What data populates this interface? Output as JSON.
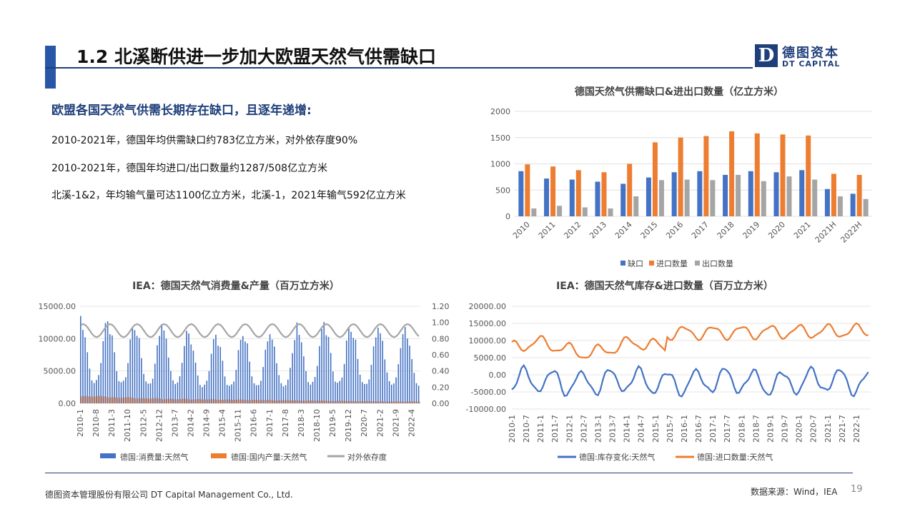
{
  "slide": {
    "title": "1.2 北溪断供进一步加大欧盟天然气供需缺口",
    "logo_mark": "D",
    "logo_cn": "德图资本",
    "logo_en": "DT CAPITAL",
    "heading": "欧盟各国天然气供需长期存在缺口，且逐年递增:",
    "bullets": [
      "2010-2021年，德国年均供需缺口约783亿立方米，对外依存度90%",
      "2010-2021年，德国年均进口/出口数量约1287/508亿立方米",
      "北溪-1&2，年均输气量可达1100亿立方米，北溪-1，2021年输气592亿立方米"
    ],
    "footer_left": "德图资本管理股份有限公司  DT Capital Management  Co., Ltd.",
    "footer_right": "数据来源：Wind，IEA",
    "page_number": "19"
  },
  "colors": {
    "blue": "#4472c4",
    "orange": "#ed7d31",
    "gray": "#a5a5a5",
    "navy": "#1f3f7a"
  },
  "chart_data": [
    {
      "type": "bar",
      "title": "德国天然气供需缺口&进出口数量（亿立方米）",
      "categories": [
        "2010",
        "2011",
        "2012",
        "2013",
        "2014",
        "2015",
        "2016",
        "2017",
        "2018",
        "2019",
        "2020",
        "2021",
        "2021H",
        "2022H"
      ],
      "ylim": [
        0,
        2000
      ],
      "yticks": [
        "0",
        "500",
        "1000",
        "1500",
        "2000"
      ],
      "legend_position": "bottom",
      "series": [
        {
          "name": "缺口",
          "color": "#4472c4",
          "values": [
            860,
            720,
            700,
            660,
            620,
            740,
            840,
            860,
            790,
            860,
            840,
            880,
            520,
            430
          ]
        },
        {
          "name": "进口数量",
          "color": "#ed7d31",
          "values": [
            990,
            950,
            880,
            840,
            1000,
            1410,
            1500,
            1530,
            1620,
            1580,
            1560,
            1540,
            810,
            790
          ]
        },
        {
          "name": "出口数量",
          "color": "#a5a5a5",
          "values": [
            150,
            200,
            170,
            150,
            380,
            690,
            700,
            690,
            790,
            670,
            760,
            700,
            380,
            330
          ]
        }
      ]
    },
    {
      "type": "bar",
      "title": "IEA：德国天然气消费量&产量（百万立方米）",
      "x_labels": [
        "2010-1",
        "2010-8",
        "2011-3",
        "2011-10",
        "2012-5",
        "2012-12",
        "2013-7",
        "2014-2",
        "2014-9",
        "2015-4",
        "2015-11",
        "2016-6",
        "2017-1",
        "2017-8",
        "2018-3",
        "2018-10",
        "2019-5",
        "2019-12",
        "2020-7",
        "2021-2",
        "2021-9",
        "2022-4"
      ],
      "ylim": [
        0,
        15000
      ],
      "yticks": [
        "0.00",
        "5000.00",
        "10000.00",
        "15000.00"
      ],
      "y2lim": [
        0,
        1.2
      ],
      "y2ticks": [
        "0.00",
        "0.20",
        "0.40",
        "0.60",
        "0.80",
        "1.00",
        "1.20"
      ],
      "legend_position": "bottom",
      "series": [
        {
          "name": "德国:消费量:天然气",
          "color": "#4472c4",
          "kind": "bar",
          "annual_peaks": [
            13500,
            13200,
            12300,
            12800,
            10800,
            11000,
            11300,
            11200,
            12500,
            13000,
            12000,
            12300,
            11800
          ]
        },
        {
          "name": "德国:国内产量:天然气",
          "color": "#ed7d31",
          "kind": "bar",
          "approx_values": [
            1150,
            950,
            800,
            700,
            650,
            600,
            550,
            500,
            450,
            400,
            350,
            300,
            300
          ]
        },
        {
          "name": "对外依存度",
          "color": "#a5a5a5",
          "kind": "line",
          "axis": "right",
          "approx_range": [
            0.8,
            0.98
          ]
        }
      ]
    },
    {
      "type": "line",
      "title": "IEA：德国天然气库存&进口数量（百万立方米）",
      "x_labels": [
        "2010-1",
        "2010-7",
        "2011-1",
        "2011-7",
        "2012-1",
        "2012-7",
        "2013-1",
        "2013-7",
        "2014-1",
        "2014-7",
        "2015-1",
        "2015-7",
        "2016-1",
        "2016-7",
        "2017-1",
        "2017-7",
        "2018-1",
        "2018-7",
        "2019-1",
        "2019-7",
        "2020-1",
        "2020-7",
        "2021-1",
        "2021-7",
        "2022-1"
      ],
      "ylim": [
        -10000,
        20000
      ],
      "yticks": [
        "-10000.00",
        "-5000.00",
        "0.00",
        "5000.00",
        "10000.00",
        "15000.00",
        "20000.00"
      ],
      "legend_position": "bottom",
      "series": [
        {
          "name": "德国:库存变化:天然气",
          "color": "#4472c4",
          "approx_range": [
            -6500,
            3200
          ]
        },
        {
          "name": "德国:进口数量:天然气",
          "color": "#ed7d31",
          "approx_range": [
            5000,
            15500
          ]
        }
      ]
    }
  ]
}
